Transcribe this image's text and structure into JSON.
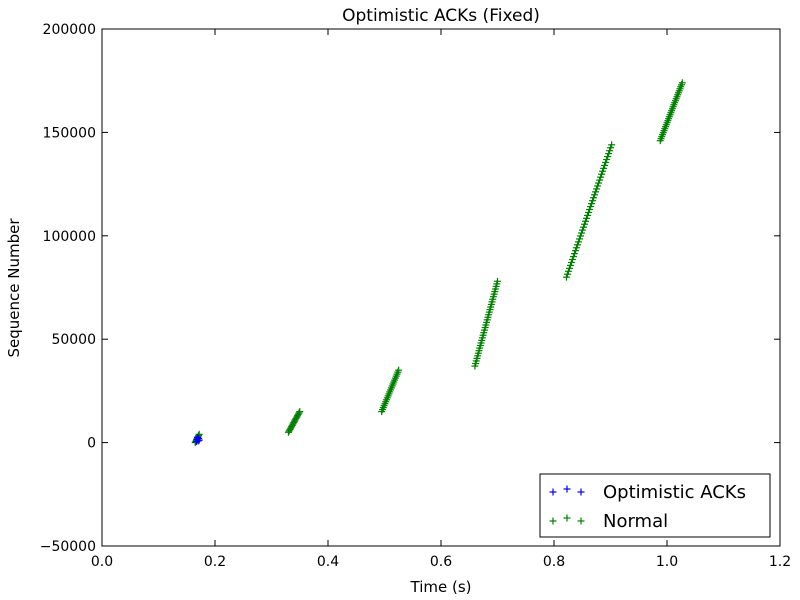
{
  "chart_data": {
    "type": "scatter",
    "title": "Optimistic ACKs (Fixed)",
    "xlabel": "Time (s)",
    "ylabel": "Sequence Number",
    "xlim": [
      0.0,
      1.2
    ],
    "ylim": [
      -50000,
      200000
    ],
    "xticks": [
      0.0,
      0.2,
      0.4,
      0.6,
      0.8,
      1.0,
      1.2
    ],
    "xtick_labels": [
      "0.0",
      "0.2",
      "0.4",
      "0.6",
      "0.8",
      "1.0",
      "1.2"
    ],
    "yticks": [
      -50000,
      0,
      50000,
      100000,
      150000,
      200000
    ],
    "ytick_labels": [
      "−50000",
      "0",
      "50000",
      "100000",
      "150000",
      "200000"
    ],
    "grid": false,
    "legend_position": "bottom-right",
    "marker": "+",
    "series": [
      {
        "name": "Optimistic ACKs",
        "color": "#0000ff",
        "points": [
          [
            0.167,
            500
          ],
          [
            0.168,
            1500
          ],
          [
            0.169,
            2500
          ],
          [
            0.17,
            800
          ],
          [
            0.171,
            2000
          ],
          [
            0.172,
            1200
          ]
        ]
      },
      {
        "name": "Normal",
        "color": "#008000",
        "segments": [
          {
            "x0": 0.165,
            "x1": 0.172,
            "y0": 0,
            "y1": 4000,
            "n": 8
          },
          {
            "x0": 0.33,
            "x1": 0.35,
            "y0": 5000,
            "y1": 15000,
            "n": 16
          },
          {
            "x0": 0.495,
            "x1": 0.525,
            "y0": 15000,
            "y1": 35000,
            "n": 22
          },
          {
            "x0": 0.66,
            "x1": 0.7,
            "y0": 37000,
            "y1": 78000,
            "n": 34
          },
          {
            "x0": 0.822,
            "x1": 0.902,
            "y0": 80000,
            "y1": 144000,
            "n": 46
          },
          {
            "x0": 0.988,
            "x1": 1.027,
            "y0": 146000,
            "y1": 174000,
            "n": 30
          }
        ]
      }
    ]
  }
}
